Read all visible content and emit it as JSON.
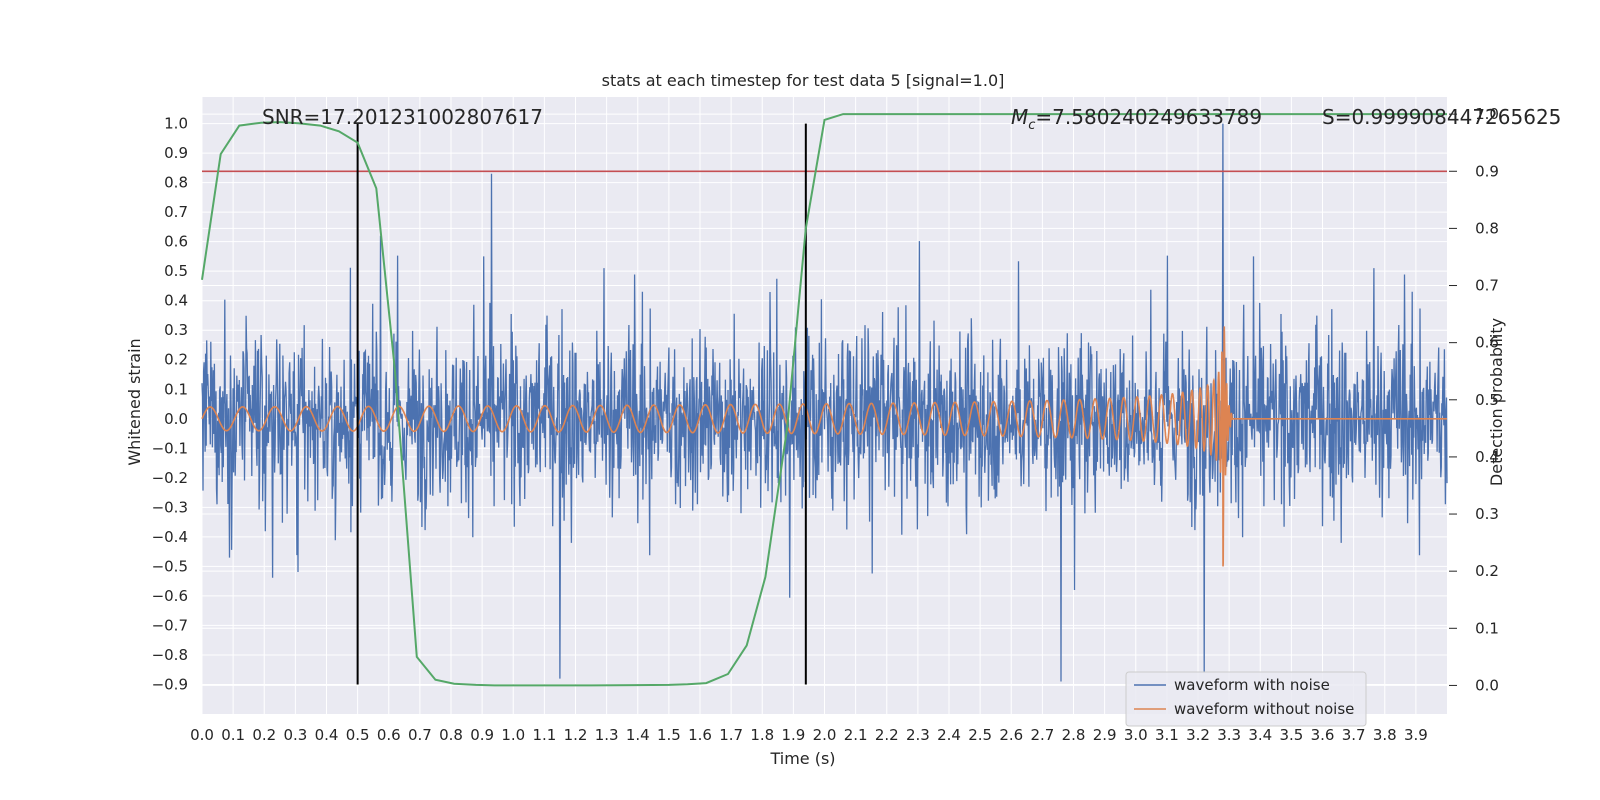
{
  "chart_data": {
    "type": "line",
    "title": "stats at each timestep for test data 5 [signal=1.0]",
    "xlabel": "Time (s)",
    "ylabel": "Whitened strain",
    "y2label": "Detection probability",
    "xlim": [
      0.0,
      4.0
    ],
    "ylim": [
      -1.0,
      1.09
    ],
    "y2lim": [
      -0.05,
      1.03
    ],
    "xticks": [
      "0.0",
      "0.1",
      "0.2",
      "0.3",
      "0.4",
      "0.5",
      "0.6",
      "0.7",
      "0.8",
      "0.9",
      "1.0",
      "1.1",
      "1.2",
      "1.3",
      "1.4",
      "1.5",
      "1.6",
      "1.7",
      "1.8",
      "1.9",
      "2.0",
      "2.1",
      "2.2",
      "2.3",
      "2.4",
      "2.5",
      "2.6",
      "2.7",
      "2.8",
      "2.9",
      "3.0",
      "3.1",
      "3.2",
      "3.3",
      "3.4",
      "3.5",
      "3.6",
      "3.7",
      "3.8",
      "3.9"
    ],
    "yticks": [
      "1.0",
      "0.9",
      "0.8",
      "0.7",
      "0.6",
      "0.5",
      "0.4",
      "0.3",
      "0.2",
      "0.1",
      "0.0",
      "−0.1",
      "−0.2",
      "−0.3",
      "−0.4",
      "−0.5",
      "−0.6",
      "−0.7",
      "−0.8",
      "−0.9"
    ],
    "y2ticks": [
      "1.0",
      "0.9",
      "0.8",
      "0.7",
      "0.6",
      "0.5",
      "0.4",
      "0.3",
      "0.2",
      "0.1",
      "0.0"
    ],
    "grid": true,
    "legend_position": "lower right",
    "annotations": {
      "snr": "SNR=17.201231002807617",
      "mc_symbol": "M",
      "mc_subscript": "c",
      "mc_value": "=7.580240249633789",
      "s": "S=0.999908447265625"
    },
    "series": [
      {
        "name": "waveform with noise",
        "color": "#4c72b0",
        "axis": "left",
        "kind": "noise",
        "amplitude_range": [
          -0.9,
          1.0
        ],
        "peaks": [
          {
            "x": 0.93,
            "y": 0.83
          },
          {
            "x": 3.28,
            "y": 1.0
          },
          {
            "x": 1.15,
            "y": -0.88
          },
          {
            "x": 3.22,
            "y": -0.86
          },
          {
            "x": 2.76,
            "y": -0.89
          }
        ]
      },
      {
        "name": "waveform without noise",
        "color": "#dd8452",
        "axis": "left",
        "kind": "chirp",
        "merger_time": 3.28,
        "early_amplitude": 0.04,
        "peak_amplitude": 0.55,
        "ringdown_end": 3.31
      },
      {
        "name": "",
        "color": "#55a868",
        "axis": "right",
        "kind": "probability",
        "x": [
          0.0,
          0.06,
          0.12,
          0.19,
          0.25,
          0.31,
          0.38,
          0.44,
          0.5,
          0.56,
          0.62,
          0.69,
          0.75,
          0.81,
          0.88,
          0.94,
          1.0,
          1.25,
          1.5,
          1.56,
          1.62,
          1.69,
          1.75,
          1.81,
          1.88,
          1.94,
          2.0,
          2.06,
          2.12,
          2.5,
          3.0,
          3.5,
          4.0
        ],
        "y": [
          0.71,
          0.93,
          0.98,
          0.985,
          0.986,
          0.984,
          0.98,
          0.97,
          0.95,
          0.87,
          0.55,
          0.05,
          0.01,
          0.003,
          0.001,
          0.0,
          0.0,
          0.0,
          0.001,
          0.002,
          0.004,
          0.02,
          0.07,
          0.19,
          0.45,
          0.8,
          0.99,
          1.0,
          1.0,
          1.0,
          1.0,
          1.0,
          1.0
        ]
      }
    ],
    "threshold": {
      "color": "#c44e52",
      "value": 0.9,
      "axis": "right"
    },
    "vlines": [
      0.5,
      1.94
    ],
    "vline_range": [
      -0.9,
      1.0
    ],
    "colors": {
      "background": "#eaeaf2",
      "grid": "#ffffff",
      "vline": "#000000"
    }
  }
}
